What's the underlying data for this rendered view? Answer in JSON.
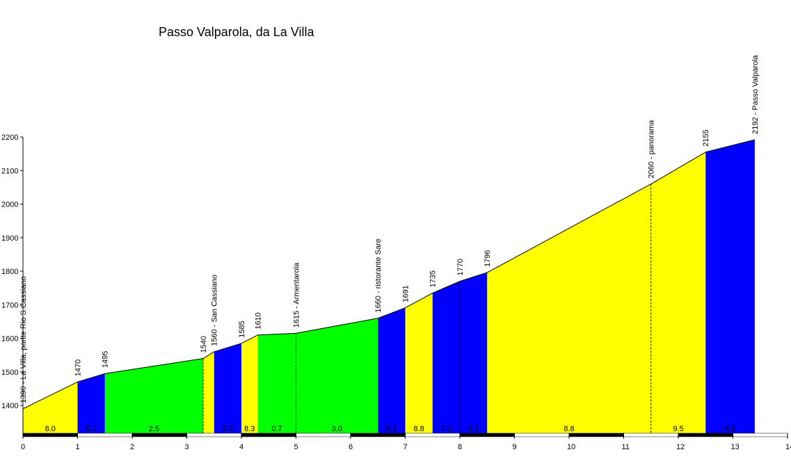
{
  "chart_data": {
    "type": "area",
    "title": "Passo Valparola, da La Villa",
    "xlabel": "",
    "ylabel": "",
    "xlim": [
      0,
      14
    ],
    "ylim": [
      1310,
      2200
    ],
    "yticks": [
      1400,
      1500,
      1600,
      1700,
      1800,
      1900,
      2000,
      2100,
      2200
    ],
    "xticks": [
      0,
      1,
      2,
      3,
      4,
      5,
      6,
      7,
      8,
      9,
      10,
      11,
      12,
      13,
      14
    ],
    "colors": {
      "yellow": "#ffff00",
      "blue": "#0000ff",
      "green": "#00ff00"
    },
    "profile": [
      {
        "x": 0,
        "y": 1390
      },
      {
        "x": 1,
        "y": 1470
      },
      {
        "x": 1.5,
        "y": 1495
      },
      {
        "x": 3.3,
        "y": 1540
      },
      {
        "x": 3.5,
        "y": 1560
      },
      {
        "x": 4,
        "y": 1585
      },
      {
        "x": 4.3,
        "y": 1610
      },
      {
        "x": 5,
        "y": 1615
      },
      {
        "x": 6.5,
        "y": 1660
      },
      {
        "x": 7,
        "y": 1691
      },
      {
        "x": 7.5,
        "y": 1735
      },
      {
        "x": 8,
        "y": 1770
      },
      {
        "x": 8.5,
        "y": 1796
      },
      {
        "x": 11.5,
        "y": 2060
      },
      {
        "x": 12.5,
        "y": 2155
      },
      {
        "x": 13.4,
        "y": 2192
      }
    ],
    "segments": [
      {
        "x0": 0,
        "x1": 1,
        "color": "yellow",
        "gradient": "8.0"
      },
      {
        "x0": 1,
        "x1": 1.5,
        "color": "blue",
        "gradient": "5.0"
      },
      {
        "x0": 1.5,
        "x1": 3.3,
        "color": "green",
        "gradient": "2.5"
      },
      {
        "x0": 3.3,
        "x1": 3.5,
        "color": "yellow",
        "gradient": ""
      },
      {
        "x0": 3.5,
        "x1": 4,
        "color": "blue",
        "gradient": "5.0"
      },
      {
        "x0": 4,
        "x1": 4.3,
        "color": "yellow",
        "gradient": "8.3"
      },
      {
        "x0": 4.3,
        "x1": 5,
        "color": "green",
        "gradient": "0.7"
      },
      {
        "x0": 5,
        "x1": 6.5,
        "color": "green",
        "gradient": "3.0"
      },
      {
        "x0": 6.5,
        "x1": 7,
        "color": "blue",
        "gradient": "6.2"
      },
      {
        "x0": 7,
        "x1": 7.5,
        "color": "yellow",
        "gradient": "8.8"
      },
      {
        "x0": 7.5,
        "x1": 8,
        "color": "blue",
        "gradient": "7.0"
      },
      {
        "x0": 8,
        "x1": 8.5,
        "color": "blue",
        "gradient": "5.2"
      },
      {
        "x0": 8.5,
        "x1": 11.5,
        "color": "yellow",
        "gradient": "8.8"
      },
      {
        "x0": 11.5,
        "x1": 12.5,
        "color": "yellow",
        "gradient": "9.5"
      },
      {
        "x0": 12.5,
        "x1": 13.4,
        "color": "blue",
        "gradient": "4.1"
      }
    ],
    "dashed_lines": [
      3.3,
      5,
      8,
      11.5
    ],
    "waypoints": [
      {
        "x": 0,
        "y": 1390,
        "label": "1390 - La Villa, ponte Rio S.Cassiano"
      },
      {
        "x": 1,
        "y": 1470,
        "label": "1470"
      },
      {
        "x": 1.5,
        "y": 1495,
        "label": "1495"
      },
      {
        "x": 3.3,
        "y": 1540,
        "label": "1540"
      },
      {
        "x": 3.5,
        "y": 1560,
        "label": "1560 - San Cassiano"
      },
      {
        "x": 4,
        "y": 1585,
        "label": "1585"
      },
      {
        "x": 4.3,
        "y": 1610,
        "label": "1610"
      },
      {
        "x": 5,
        "y": 1615,
        "label": "1615 - Armentarola"
      },
      {
        "x": 6.5,
        "y": 1660,
        "label": "1660 - ristorante Sare"
      },
      {
        "x": 7,
        "y": 1691,
        "label": "1691"
      },
      {
        "x": 7.5,
        "y": 1735,
        "label": "1735"
      },
      {
        "x": 8,
        "y": 1770,
        "label": "1770"
      },
      {
        "x": 8.5,
        "y": 1796,
        "label": "1796"
      },
      {
        "x": 11.5,
        "y": 2060,
        "label": "2060 - panorama"
      },
      {
        "x": 12.5,
        "y": 2155,
        "label": "2155"
      },
      {
        "x": 13.4,
        "y": 2192,
        "label": "2192 - Passo Valparola"
      }
    ]
  }
}
